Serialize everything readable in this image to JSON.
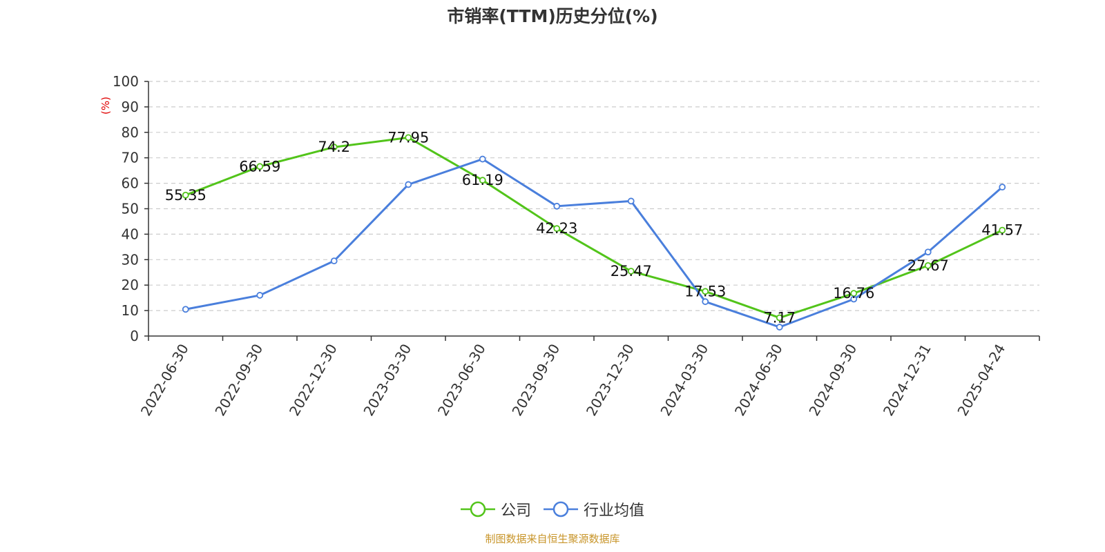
{
  "chart_data": {
    "type": "line",
    "title": "市销率(TTM)历史分位(%)",
    "ylabel": "(%)",
    "xlabel": "",
    "ylim": [
      0,
      100
    ],
    "yticks": [
      0,
      10,
      20,
      30,
      40,
      50,
      60,
      70,
      80,
      90,
      100
    ],
    "grid": true,
    "legend_position": "bottom",
    "categories": [
      "2022-06-30",
      "2022-09-30",
      "2022-12-30",
      "2023-03-30",
      "2023-06-30",
      "2023-09-30",
      "2023-12-30",
      "2024-03-30",
      "2024-06-30",
      "2024-09-30",
      "2024-12-31",
      "2025-04-24"
    ],
    "series": [
      {
        "name": "公司",
        "color": "#52c41a",
        "values": [
          55.35,
          66.59,
          74.2,
          77.95,
          61.19,
          42.23,
          25.47,
          17.53,
          7.17,
          16.76,
          27.67,
          41.57
        ],
        "data_labels": true
      },
      {
        "name": "行业均值",
        "color": "#4a7fdc",
        "values": [
          10.5,
          16.0,
          29.5,
          59.5,
          69.5,
          51.0,
          53.0,
          13.5,
          3.5,
          14.5,
          33.0,
          58.5
        ],
        "data_labels": false
      }
    ]
  },
  "source": "制图数据来自恒生聚源数据库"
}
